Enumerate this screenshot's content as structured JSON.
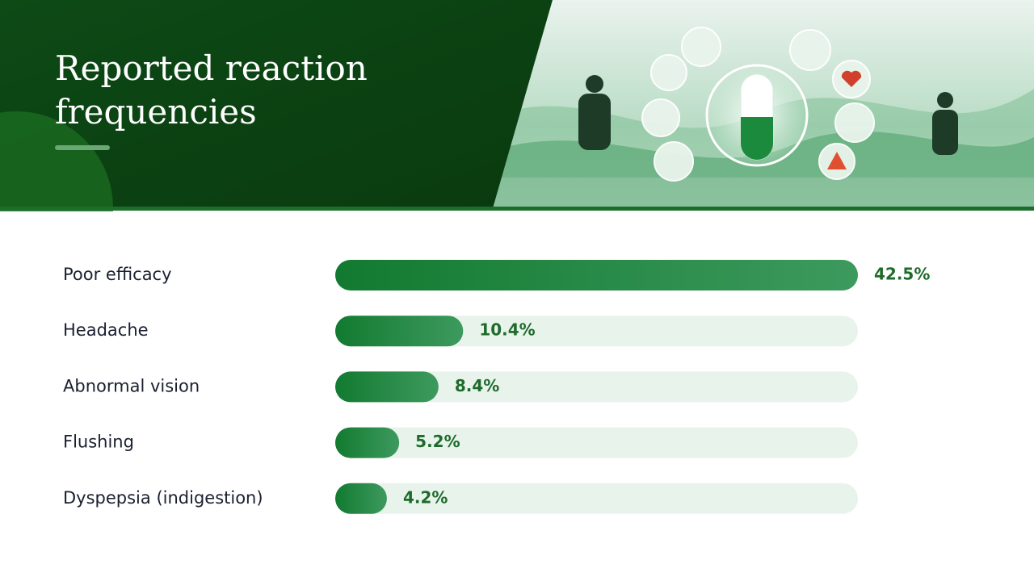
{
  "chart_data": {
    "type": "bar",
    "orientation": "horizontal",
    "title": "Reported reaction frequencies",
    "categories": [
      "Poor efficacy",
      "Headache",
      "Abnormal vision",
      "Flushing",
      "Dyspepsia (indigestion)"
    ],
    "values": [
      42.5,
      10.4,
      8.4,
      5.2,
      4.2
    ],
    "value_labels": [
      "42.5%",
      "10.4%",
      "8.4%",
      "5.2%",
      "4.2%"
    ],
    "color": "#127a30",
    "xlim": [
      0,
      42.5
    ]
  }
}
